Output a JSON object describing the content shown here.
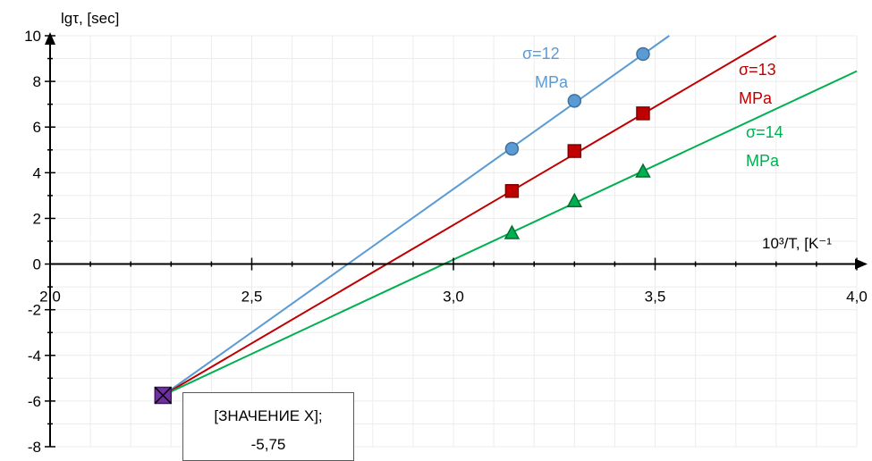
{
  "chart_data": {
    "type": "scatter",
    "x_axis": {
      "label": "10³/T, [K⁻¹",
      "min": 2.0,
      "max": 4.0,
      "major_step": 0.5,
      "ticks": [
        "2,0",
        "2,5",
        "3,0",
        "3,5",
        "4,0"
      ]
    },
    "y_axis": {
      "label": "lgτ, [sec]",
      "min": -8,
      "max": 10,
      "major_step": 2,
      "ticks": [
        "-8",
        "-6",
        "-4",
        "-2",
        "0",
        "2",
        "4",
        "6",
        "8",
        "10"
      ]
    },
    "grid": true,
    "series": [
      {
        "label_line1": "σ=12",
        "label_line2": "MPa",
        "color": "#5b9bd5",
        "marker": "circle",
        "points": [
          [
            3.145,
            5.05
          ],
          [
            3.3,
            7.15
          ],
          [
            3.47,
            9.2
          ]
        ],
        "fit_line": [
          [
            2.28,
            -5.75
          ],
          [
            3.535,
            10
          ]
        ]
      },
      {
        "label_line1": "σ=13",
        "label_line2": "MPa",
        "color": "#c00000",
        "marker": "square",
        "points": [
          [
            3.145,
            3.2
          ],
          [
            3.3,
            4.95
          ],
          [
            3.47,
            6.6
          ]
        ],
        "fit_line": [
          [
            2.28,
            -5.75
          ],
          [
            3.8,
            10
          ]
        ]
      },
      {
        "label_line1": "σ=14",
        "label_line2": "MPa",
        "color": "#00b050",
        "marker": "triangle",
        "points": [
          [
            3.145,
            1.35
          ],
          [
            3.3,
            2.75
          ],
          [
            3.47,
            4.05
          ]
        ],
        "fit_line": [
          [
            2.28,
            -5.75
          ],
          [
            4.0,
            8.45
          ]
        ]
      }
    ],
    "intersection_point": {
      "x": 2.28,
      "y": -5.75,
      "color": "#7030a0",
      "marker": "x-square"
    },
    "callout": {
      "line1": "[ЗНАЧЕНИЕ X];",
      "line2": "-5,75"
    }
  }
}
